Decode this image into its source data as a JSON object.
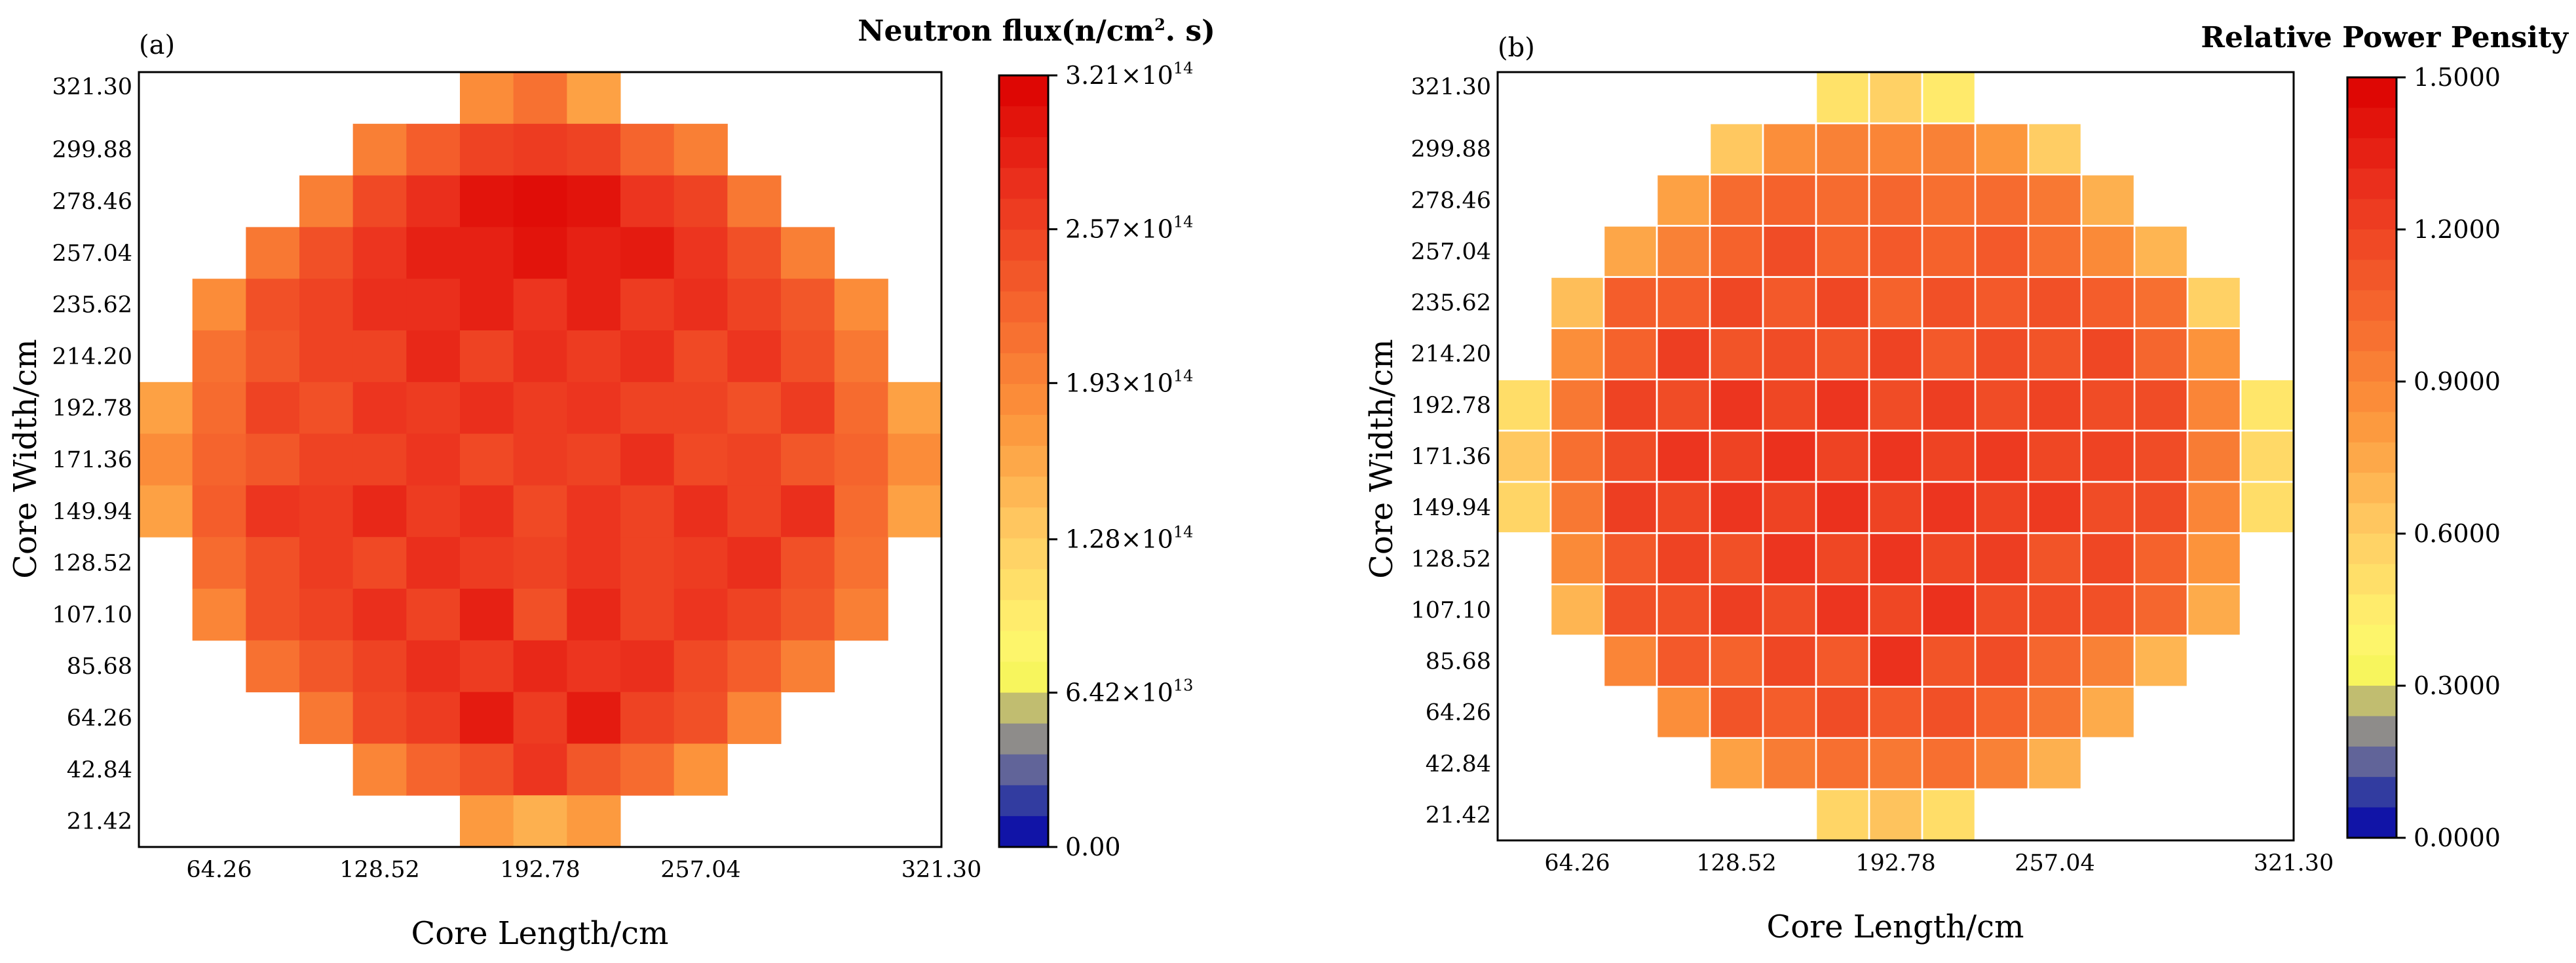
{
  "chart_data": [
    {
      "type": "heatmap",
      "panel_label": "(a)",
      "title": "Neutron flux(n/cm",
      "title_sup": "2",
      "title_tail": ". s)",
      "xlabel": "Core Length/cm",
      "ylabel": "Core Width/cm",
      "x_ticks": [
        "64.26",
        "128.52",
        "192.78",
        "257.04",
        "321.30"
      ],
      "y_ticks": [
        "321.30",
        "299.88",
        "278.46",
        "257.04",
        "235.62",
        "214.20",
        "192.78",
        "171.36",
        "149.94",
        "128.52",
        "107.10",
        "85.68",
        "64.26",
        "42.84",
        "21.42"
      ],
      "grid_size": 15,
      "cell_lines": false,
      "colorbar": {
        "min": 0,
        "max": 321000000000000.0,
        "labels": [
          {
            "value": 321000000000000.0,
            "mantissa": "3.21×10",
            "exp": "14"
          },
          {
            "value": 257000000000000.0,
            "mantissa": "2.57×10",
            "exp": "14"
          },
          {
            "value": 193000000000000.0,
            "mantissa": "1.93×10",
            "exp": "14"
          },
          {
            "value": 128000000000000.0,
            "mantissa": "1.28×10",
            "exp": "14"
          },
          {
            "value": 64200000000000.0,
            "mantissa": "6.42×10",
            "exp": "13"
          },
          {
            "value": 0,
            "mantissa": "0.00",
            "exp": ""
          }
        ]
      },
      "values_top_to_bottom": [
        [
          null,
          null,
          null,
          null,
          null,
          null,
          0.58,
          0.66,
          0.52,
          null,
          null,
          null,
          null,
          null,
          null
        ],
        [
          null,
          null,
          null,
          null,
          0.62,
          0.72,
          0.8,
          0.82,
          0.8,
          0.7,
          0.62,
          null,
          null,
          null,
          null
        ],
        [
          null,
          null,
          null,
          0.62,
          0.78,
          0.86,
          0.94,
          0.96,
          0.94,
          0.84,
          0.8,
          0.64,
          null,
          null,
          null
        ],
        [
          null,
          null,
          0.64,
          0.76,
          0.84,
          0.9,
          0.9,
          0.94,
          0.9,
          0.92,
          0.84,
          0.76,
          0.62,
          null,
          null
        ],
        [
          null,
          0.58,
          0.76,
          0.8,
          0.86,
          0.86,
          0.9,
          0.84,
          0.9,
          0.82,
          0.86,
          0.8,
          0.74,
          0.58,
          null
        ],
        [
          null,
          0.66,
          0.74,
          0.8,
          0.8,
          0.88,
          0.8,
          0.86,
          0.82,
          0.86,
          0.78,
          0.84,
          0.76,
          0.64,
          null
        ],
        [
          0.52,
          0.68,
          0.8,
          0.76,
          0.84,
          0.82,
          0.86,
          0.82,
          0.84,
          0.8,
          0.8,
          0.76,
          0.82,
          0.68,
          0.52
        ],
        [
          0.58,
          0.7,
          0.74,
          0.8,
          0.8,
          0.84,
          0.78,
          0.82,
          0.8,
          0.86,
          0.78,
          0.8,
          0.74,
          0.7,
          0.58
        ],
        [
          0.52,
          0.72,
          0.84,
          0.82,
          0.88,
          0.82,
          0.86,
          0.78,
          0.84,
          0.8,
          0.86,
          0.8,
          0.86,
          0.68,
          0.52
        ],
        [
          null,
          0.68,
          0.76,
          0.82,
          0.78,
          0.86,
          0.82,
          0.8,
          0.84,
          0.8,
          0.82,
          0.86,
          0.76,
          0.66,
          null
        ],
        [
          null,
          0.6,
          0.76,
          0.8,
          0.86,
          0.8,
          0.9,
          0.76,
          0.88,
          0.8,
          0.84,
          0.8,
          0.74,
          0.62,
          null
        ],
        [
          null,
          null,
          0.66,
          0.74,
          0.8,
          0.86,
          0.82,
          0.88,
          0.84,
          0.86,
          0.78,
          0.72,
          0.62,
          null,
          null
        ],
        [
          null,
          null,
          null,
          0.64,
          0.78,
          0.82,
          0.92,
          0.82,
          0.92,
          0.8,
          0.76,
          0.6,
          null,
          null,
          null
        ],
        [
          null,
          null,
          null,
          null,
          0.6,
          0.7,
          0.76,
          0.84,
          0.74,
          0.68,
          0.56,
          null,
          null,
          null,
          null
        ],
        [
          null,
          null,
          null,
          null,
          null,
          null,
          0.54,
          0.48,
          0.54,
          null,
          null,
          null,
          null,
          null,
          null
        ]
      ]
    },
    {
      "type": "heatmap",
      "panel_label": "(b)",
      "title": "Relative Power Pensity",
      "title_sup": "",
      "title_tail": "",
      "xlabel": "Core Length/cm",
      "ylabel": "Core Width/cm",
      "x_ticks": [
        "64.26",
        "128.52",
        "192.78",
        "257.04",
        "321.30"
      ],
      "y_ticks": [
        "321.30",
        "299.88",
        "278.46",
        "257.04",
        "235.62",
        "214.20",
        "192.78",
        "171.36",
        "149.94",
        "128.52",
        "107.10",
        "85.68",
        "64.26",
        "42.84",
        "21.42"
      ],
      "grid_size": 15,
      "cell_lines": true,
      "colorbar": {
        "min": 0,
        "max": 1.5,
        "labels": [
          {
            "value": 1.5,
            "mantissa": "1.5000",
            "exp": ""
          },
          {
            "value": 1.2,
            "mantissa": "1.2000",
            "exp": ""
          },
          {
            "value": 0.9,
            "mantissa": "0.9000",
            "exp": ""
          },
          {
            "value": 0.6,
            "mantissa": "0.6000",
            "exp": ""
          },
          {
            "value": 0.3,
            "mantissa": "0.3000",
            "exp": ""
          },
          {
            "value": 0.0,
            "mantissa": "0.0000",
            "exp": ""
          }
        ]
      },
      "values_top_to_bottom": [
        [
          null,
          null,
          null,
          null,
          null,
          null,
          0.5,
          0.58,
          0.46,
          null,
          null,
          null,
          null,
          null,
          null
        ],
        [
          null,
          null,
          null,
          null,
          0.62,
          0.86,
          0.92,
          0.9,
          0.92,
          0.82,
          0.6,
          null,
          null,
          null,
          null
        ],
        [
          null,
          null,
          null,
          0.78,
          1.02,
          1.06,
          1.02,
          1.04,
          1.0,
          1.02,
          0.96,
          0.72,
          null,
          null,
          null
        ],
        [
          null,
          null,
          0.76,
          0.92,
          1.06,
          1.16,
          1.06,
          1.1,
          1.06,
          1.1,
          1.0,
          0.88,
          0.7,
          null,
          null
        ],
        [
          null,
          0.66,
          1.08,
          1.08,
          1.18,
          1.1,
          1.18,
          1.06,
          1.14,
          1.1,
          1.14,
          1.08,
          1.0,
          0.58,
          null
        ],
        [
          null,
          0.86,
          1.06,
          1.22,
          1.12,
          1.16,
          1.12,
          1.2,
          1.1,
          1.16,
          1.12,
          1.18,
          1.04,
          0.84,
          null
        ],
        [
          0.52,
          0.96,
          1.2,
          1.16,
          1.26,
          1.18,
          1.26,
          1.16,
          1.22,
          1.16,
          1.2,
          1.16,
          1.16,
          0.9,
          0.48
        ],
        [
          0.62,
          1.0,
          1.16,
          1.26,
          1.2,
          1.28,
          1.2,
          1.26,
          1.2,
          1.24,
          1.18,
          1.2,
          1.16,
          0.94,
          0.54
        ],
        [
          0.56,
          0.96,
          1.22,
          1.18,
          1.26,
          1.2,
          1.28,
          1.2,
          1.26,
          1.2,
          1.24,
          1.16,
          1.16,
          0.9,
          0.52
        ],
        [
          null,
          0.88,
          1.1,
          1.2,
          1.14,
          1.26,
          1.18,
          1.26,
          1.18,
          1.22,
          1.12,
          1.18,
          1.06,
          0.84,
          null
        ],
        [
          null,
          0.7,
          1.14,
          1.14,
          1.22,
          1.16,
          1.26,
          1.18,
          1.28,
          1.16,
          1.16,
          1.14,
          1.04,
          0.74,
          null
        ],
        [
          null,
          null,
          0.9,
          1.1,
          1.06,
          1.18,
          1.1,
          1.28,
          1.12,
          1.16,
          1.04,
          0.92,
          0.7,
          null,
          null
        ],
        [
          null,
          null,
          null,
          0.86,
          1.12,
          1.08,
          1.16,
          1.1,
          1.14,
          1.06,
          0.98,
          0.74,
          null,
          null,
          null
        ],
        [
          null,
          null,
          null,
          null,
          0.78,
          0.94,
          1.0,
          0.96,
          1.0,
          0.92,
          0.72,
          null,
          null,
          null,
          null
        ],
        [
          null,
          null,
          null,
          null,
          null,
          null,
          0.56,
          0.64,
          0.52,
          null,
          null,
          null,
          null,
          null,
          null
        ]
      ]
    }
  ]
}
